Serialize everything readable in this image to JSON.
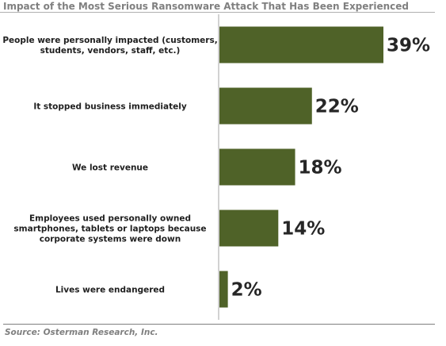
{
  "title": "Impact of the Most Serious Ransomware Attack That Has Been Experienced",
  "source": "Source: Osterman Research, Inc.",
  "colors": {
    "bar": "#4f6228",
    "axis": "#a6a6a6",
    "title": "#808080"
  },
  "chart_data": {
    "type": "bar",
    "orientation": "horizontal",
    "title": "Impact of the Most Serious Ransomware Attack That Has Been Experienced",
    "categories": [
      [
        "People were personally impacted (customers,",
        "students, vendors, staff, etc.)"
      ],
      [
        "It stopped business immediately"
      ],
      [
        "We lost revenue"
      ],
      [
        "Employees used personally owned",
        "smartphones, tablets or laptops because",
        "corporate systems were down"
      ],
      [
        "Lives were endangered"
      ]
    ],
    "values": [
      39,
      22,
      18,
      14,
      2
    ],
    "value_labels": [
      "39%",
      "22%",
      "18%",
      "14%",
      "2%"
    ],
    "xlim": [
      0,
      39
    ],
    "grid": false,
    "legend": "none"
  }
}
